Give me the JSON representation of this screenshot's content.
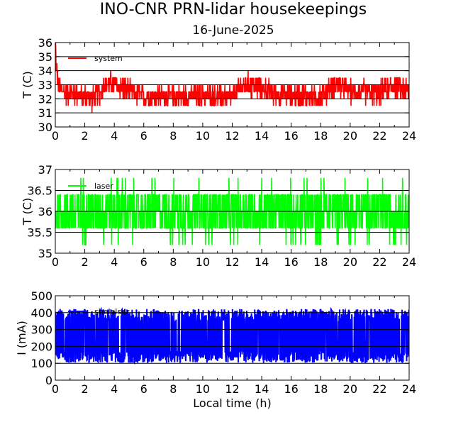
{
  "title": "INO-CNR PRN-lidar housekeepings",
  "subtitle": "16-June-2025",
  "chart_data": [
    {
      "type": "line",
      "ylabel": "T (C)",
      "xlabel": "",
      "xlim": [
        0,
        24
      ],
      "ylim": [
        30,
        36
      ],
      "xticks": [
        0,
        2,
        4,
        6,
        8,
        10,
        12,
        14,
        16,
        18,
        20,
        22,
        24
      ],
      "yticks": [
        30,
        31,
        32,
        33,
        34,
        35,
        36
      ],
      "ytick_labels": [
        "30",
        "31",
        "32",
        "33",
        "34",
        "35",
        "36"
      ],
      "grid": true,
      "legend_position": "top-left",
      "series": [
        {
          "name": "system",
          "color": "#ff0000",
          "pattern": "noisy",
          "base": 32.5,
          "amplitude": 1.0,
          "x": [
            0,
            0.05,
            0.2,
            0.5,
            1,
            2,
            2.5,
            3,
            3.5,
            4,
            5,
            6,
            7,
            8,
            9,
            10,
            11,
            12,
            12.5,
            13,
            14,
            15,
            16,
            17,
            18,
            19,
            20,
            21,
            22,
            23,
            24
          ],
          "y": [
            36.0,
            34.5,
            33.0,
            32.5,
            32.5,
            32.2,
            32.0,
            32.5,
            33.0,
            33.0,
            32.5,
            32.2,
            32.2,
            32.2,
            32.2,
            32.2,
            32.2,
            32.2,
            32.7,
            33.0,
            32.8,
            32.3,
            32.2,
            32.2,
            32.2,
            33.0,
            32.5,
            32.5,
            32.3,
            33.0,
            32.5
          ]
        }
      ]
    },
    {
      "type": "line",
      "ylabel": "T (C)",
      "xlabel": "",
      "xlim": [
        0,
        24
      ],
      "ylim": [
        35,
        37
      ],
      "xticks": [
        0,
        2,
        4,
        6,
        8,
        10,
        12,
        14,
        16,
        18,
        20,
        22,
        24
      ],
      "yticks": [
        35,
        35.5,
        36,
        36.5,
        37
      ],
      "ytick_labels": [
        "35",
        "35.5",
        "36",
        "36.5",
        "37"
      ],
      "grid": true,
      "legend_position": "top-left",
      "series": [
        {
          "name": "laser",
          "color": "#00ff00",
          "pattern": "noisy",
          "base": 36.0,
          "amplitude": 0.8,
          "x": [
            0,
            4,
            8,
            12,
            16,
            20,
            24
          ],
          "y": [
            36.0,
            36.0,
            36.0,
            36.0,
            36.0,
            36.0,
            36.0
          ]
        }
      ]
    },
    {
      "type": "line",
      "ylabel": "I (mA)",
      "xlabel": "Local time (h)",
      "xlim": [
        0,
        24
      ],
      "ylim": [
        0,
        500
      ],
      "xticks": [
        0,
        2,
        4,
        6,
        8,
        10,
        12,
        14,
        16,
        18,
        20,
        22,
        24
      ],
      "yticks": [
        0,
        100,
        200,
        300,
        400,
        500
      ],
      "ytick_labels": [
        "0",
        "100",
        "200",
        "300",
        "400",
        "500"
      ],
      "grid": true,
      "legend_position": "top-left",
      "series": [
        {
          "name": "shelalser",
          "color": "#0000ff",
          "pattern": "band",
          "base": 262,
          "amplitude": 160,
          "x": [
            0,
            4,
            8,
            12,
            16,
            20,
            24
          ],
          "y": [
            262,
            262,
            262,
            262,
            262,
            262,
            262
          ]
        }
      ]
    }
  ]
}
